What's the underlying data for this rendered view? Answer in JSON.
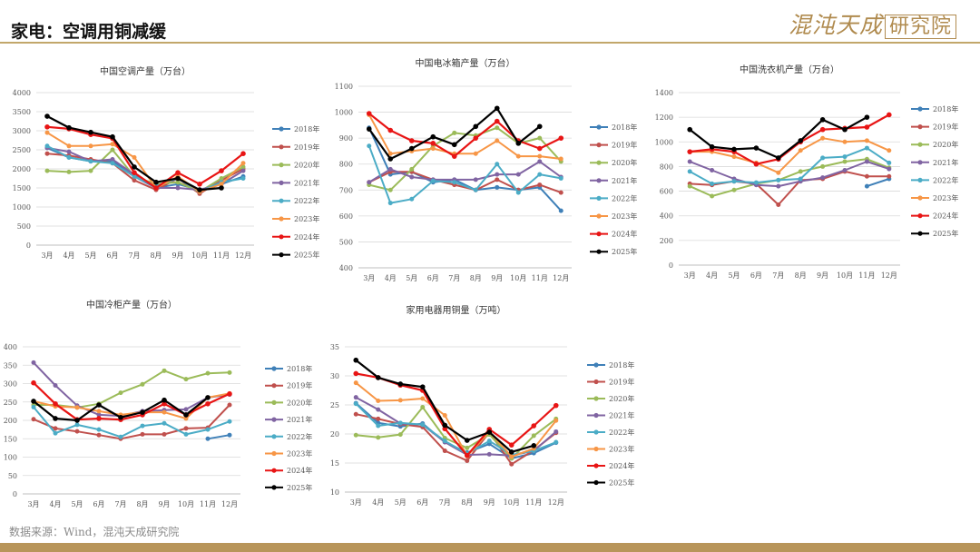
{
  "page": {
    "title": "家电：空调用铜减缓",
    "brand_main": "混沌天成",
    "brand_box": "研究院",
    "source": "数据来源：Wind，混沌天成研究院"
  },
  "colors": {
    "2018年": "#3f80b8",
    "2019年": "#c0504d",
    "2020年": "#9bbb59",
    "2021年": "#8064a2",
    "2022年": "#4bacc6",
    "2023年": "#f79646",
    "2024年": "#e81515",
    "2025年": "#000000",
    "rule": "#c2a76a",
    "footer": "#b8955a"
  },
  "chart_data": [
    {
      "type": "line",
      "title": "中国空调产量（万台）",
      "categories": [
        "3月",
        "4月",
        "5月",
        "6月",
        "7月",
        "8月",
        "9月",
        "10月",
        "11月",
        "12月"
      ],
      "ylim": [
        0,
        4000
      ],
      "yticks": [
        0,
        500,
        1000,
        1500,
        2000,
        2500,
        3000,
        3500,
        4000
      ],
      "series": [
        {
          "name": "2018年",
          "values": [
            2550,
            2300,
            2200,
            2200,
            1800,
            1500,
            1600,
            1450,
            1600,
            1800
          ]
        },
        {
          "name": "2019年",
          "values": [
            2400,
            2350,
            2250,
            2150,
            1700,
            1450,
            1750,
            1350,
            1700,
            2000
          ]
        },
        {
          "name": "2020年",
          "values": [
            1950,
            1920,
            1950,
            2500,
            1800,
            1600,
            1650,
            1400,
            1750,
            2050
          ]
        },
        {
          "name": "2021年",
          "values": [
            2550,
            2450,
            2200,
            2250,
            1850,
            1500,
            1500,
            1450,
            1600,
            1950
          ]
        },
        {
          "name": "2022年",
          "values": [
            2600,
            2300,
            2200,
            2150,
            1800,
            1550,
            1750,
            1400,
            1650,
            1750
          ]
        },
        {
          "name": "2023年",
          "values": [
            2950,
            2600,
            2600,
            2650,
            2300,
            1500,
            1800,
            1400,
            1600,
            2150
          ]
        },
        {
          "name": "2024年",
          "values": [
            3100,
            3050,
            2900,
            2800,
            1900,
            1500,
            1900,
            1600,
            1950,
            2400
          ]
        },
        {
          "name": "2025年",
          "values": [
            3380,
            3080,
            2960,
            2840,
            2050,
            1650,
            1750,
            1450,
            1500,
            null
          ]
        }
      ]
    },
    {
      "type": "line",
      "title": "中国电冰箱产量（万台）",
      "categories": [
        "3月",
        "4月",
        "5月",
        "6月",
        "7月",
        "8月",
        "9月",
        "10月",
        "11月",
        "12月"
      ],
      "ylim": [
        400,
        1100
      ],
      "yticks": [
        400,
        500,
        600,
        700,
        800,
        900,
        1000,
        1100
      ],
      "series": [
        {
          "name": "2018年",
          "values": [
            940,
            760,
            770,
            730,
            740,
            700,
            710,
            700,
            710,
            620
          ]
        },
        {
          "name": "2019年",
          "values": [
            730,
            770,
            770,
            740,
            720,
            700,
            740,
            700,
            720,
            690
          ]
        },
        {
          "name": "2020年",
          "values": [
            720,
            700,
            780,
            870,
            920,
            910,
            940,
            880,
            900,
            810
          ]
        },
        {
          "name": "2021年",
          "values": [
            730,
            780,
            750,
            740,
            740,
            740,
            760,
            760,
            810,
            750
          ]
        },
        {
          "name": "2022年",
          "values": [
            870,
            650,
            665,
            735,
            730,
            700,
            800,
            690,
            760,
            745
          ]
        },
        {
          "name": "2023年",
          "values": [
            990,
            840,
            850,
            860,
            840,
            840,
            890,
            830,
            830,
            820
          ]
        },
        {
          "name": "2024年",
          "values": [
            995,
            930,
            890,
            880,
            830,
            900,
            965,
            890,
            860,
            900
          ]
        },
        {
          "name": "2025年",
          "values": [
            935,
            820,
            860,
            905,
            875,
            945,
            1015,
            880,
            945,
            null
          ]
        }
      ]
    },
    {
      "type": "line",
      "title": "中国洗衣机产量（万台）",
      "categories": [
        "3月",
        "4月",
        "5月",
        "6月",
        "7月",
        "8月",
        "9月",
        "10月",
        "11月",
        "12月"
      ],
      "ylim": [
        0,
        1400
      ],
      "yticks": [
        0,
        200,
        400,
        600,
        800,
        1000,
        1200,
        1400
      ],
      "series": [
        {
          "name": "2018年",
          "values": [
            null,
            null,
            null,
            null,
            null,
            null,
            null,
            null,
            640,
            700
          ]
        },
        {
          "name": "2019年",
          "values": [
            660,
            650,
            680,
            660,
            490,
            690,
            700,
            760,
            720,
            720
          ]
        },
        {
          "name": "2020年",
          "values": [
            640,
            560,
            610,
            660,
            690,
            760,
            800,
            840,
            860,
            790
          ]
        },
        {
          "name": "2021年",
          "values": [
            840,
            770,
            700,
            650,
            640,
            680,
            710,
            770,
            840,
            780
          ]
        },
        {
          "name": "2022年",
          "values": [
            760,
            660,
            680,
            670,
            690,
            700,
            870,
            880,
            950,
            830
          ]
        },
        {
          "name": "2023年",
          "values": [
            920,
            920,
            880,
            830,
            750,
            930,
            1030,
            1000,
            1010,
            930
          ]
        },
        {
          "name": "2024年",
          "values": [
            920,
            940,
            920,
            820,
            860,
            1000,
            1100,
            1110,
            1120,
            1220
          ]
        },
        {
          "name": "2025年",
          "values": [
            1100,
            960,
            940,
            950,
            870,
            1010,
            1180,
            1100,
            1200,
            null
          ]
        }
      ]
    },
    {
      "type": "line",
      "title": "中国冷柜产量（万台）",
      "categories": [
        "3月",
        "4月",
        "5月",
        "6月",
        "7月",
        "8月",
        "9月",
        "10月",
        "11月",
        "12月"
      ],
      "ylim": [
        0,
        400
      ],
      "yticks": [
        0,
        50,
        100,
        150,
        200,
        250,
        300,
        350,
        400
      ],
      "series": [
        {
          "name": "2018年",
          "values": [
            null,
            null,
            null,
            null,
            null,
            null,
            null,
            null,
            150,
            160
          ]
        },
        {
          "name": "2019年",
          "values": [
            203,
            178,
            170,
            160,
            150,
            162,
            162,
            178,
            180,
            242
          ]
        },
        {
          "name": "2020年",
          "values": [
            242,
            242,
            235,
            245,
            275,
            298,
            335,
            312,
            328,
            330
          ]
        },
        {
          "name": "2021年",
          "values": [
            357,
            295,
            240,
            215,
            212,
            225,
            228,
            230,
            262,
            270
          ]
        },
        {
          "name": "2022年",
          "values": [
            236,
            165,
            188,
            175,
            155,
            185,
            192,
            162,
            175,
            197
          ]
        },
        {
          "name": "2023年",
          "values": [
            252,
            238,
            235,
            225,
            215,
            222,
            222,
            205,
            262,
            273
          ]
        },
        {
          "name": "2024年",
          "values": [
            302,
            245,
            202,
            205,
            202,
            215,
            245,
            215,
            245,
            272
          ]
        },
        {
          "name": "2025年",
          "values": [
            252,
            205,
            200,
            242,
            208,
            222,
            255,
            215,
            262,
            null
          ]
        }
      ]
    },
    {
      "type": "line",
      "title": "家用电器用铜量（万吨）",
      "categories": [
        "3月",
        "4月",
        "5月",
        "6月",
        "7月",
        "8月",
        "9月",
        "10月",
        "11月",
        "12月"
      ],
      "ylim": [
        10,
        35
      ],
      "yticks": [
        10,
        15,
        20,
        25,
        30,
        35
      ],
      "series": [
        {
          "name": "2018年",
          "values": [
            25.3,
            21.9,
            21.3,
            21.8,
            18.6,
            16.8,
            18.3,
            15.8,
            16.7,
            18.5
          ]
        },
        {
          "name": "2019年",
          "values": [
            23.4,
            22.6,
            21.7,
            21.2,
            17.1,
            15.4,
            20.3,
            14.8,
            17.2,
            20.2
          ]
        },
        {
          "name": "2020年",
          "values": [
            19.8,
            19.4,
            19.9,
            24.6,
            19.3,
            17.6,
            19.9,
            15.8,
            19.7,
            22.6
          ]
        },
        {
          "name": "2021年",
          "values": [
            26.3,
            24.2,
            21.8,
            21.6,
            18.6,
            16.4,
            16.5,
            16.3,
            17.1,
            20.4
          ]
        },
        {
          "name": "2022年",
          "values": [
            25.2,
            21.4,
            21.9,
            21.6,
            18.8,
            16.6,
            18.8,
            16.4,
            17.1,
            18.6
          ]
        },
        {
          "name": "2023年",
          "values": [
            28.8,
            25.7,
            25.8,
            26.1,
            23.2,
            16.2,
            20.4,
            16.1,
            17.5,
            22.3
          ]
        },
        {
          "name": "2024年",
          "values": [
            30.4,
            29.7,
            28.4,
            27.5,
            20.9,
            16.3,
            20.8,
            18.1,
            21.4,
            24.9
          ]
        },
        {
          "name": "2025年",
          "values": [
            32.7,
            29.7,
            28.6,
            28.1,
            21.5,
            18.9,
            20.3,
            16.9,
            18.0,
            null
          ]
        }
      ]
    }
  ]
}
